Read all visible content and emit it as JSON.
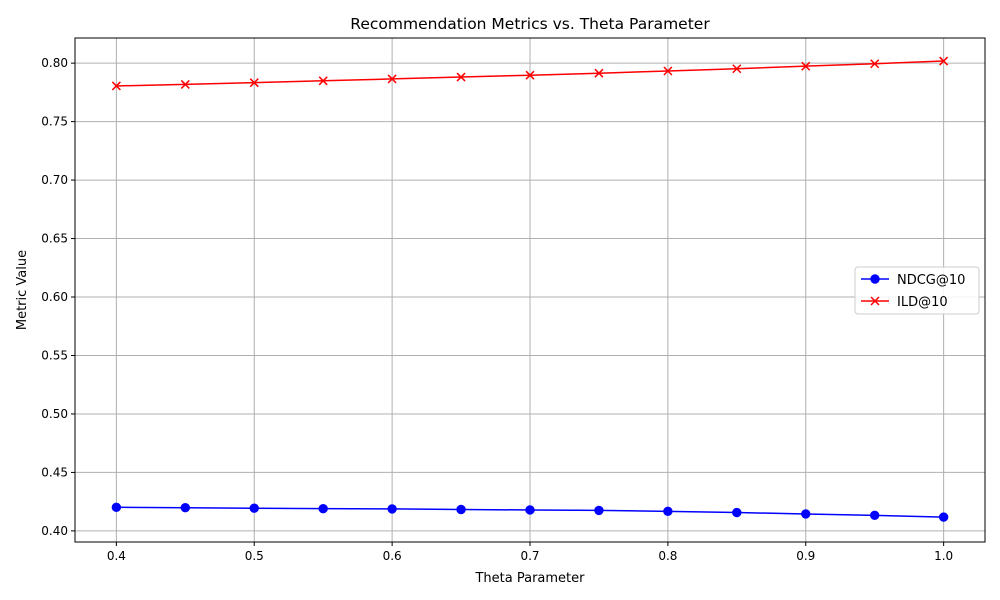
{
  "chart_data": {
    "type": "line",
    "title": "Recommendation Metrics vs. Theta Parameter",
    "xlabel": "Theta Parameter",
    "ylabel": "Metric Value",
    "x": [
      0.4,
      0.45,
      0.5,
      0.55,
      0.6,
      0.65,
      0.7,
      0.75,
      0.8,
      0.85,
      0.9,
      0.95,
      1.0
    ],
    "xlim": [
      0.37,
      1.03
    ],
    "ylim": [
      0.3905,
      0.8215
    ],
    "xticks": [
      "0.4",
      "0.5",
      "0.6",
      "0.7",
      "0.8",
      "0.9",
      "1.0"
    ],
    "yticks": [
      "0.40",
      "0.45",
      "0.50",
      "0.55",
      "0.60",
      "0.65",
      "0.70",
      "0.75",
      "0.80"
    ],
    "grid": true,
    "legend_position": "center-right",
    "series": [
      {
        "name": "NDCG@10",
        "color": "#0000ff",
        "marker": "circle",
        "values": [
          0.4202,
          0.4198,
          0.4194,
          0.419,
          0.4188,
          0.4183,
          0.4179,
          0.4175,
          0.4167,
          0.4157,
          0.4145,
          0.4133,
          0.4118
        ]
      },
      {
        "name": "ILD@10",
        "color": "#ff0000",
        "marker": "x",
        "values": [
          0.7805,
          0.7818,
          0.7833,
          0.7849,
          0.7865,
          0.7881,
          0.7897,
          0.7914,
          0.7933,
          0.7952,
          0.7974,
          0.7995,
          0.8018
        ]
      }
    ]
  }
}
